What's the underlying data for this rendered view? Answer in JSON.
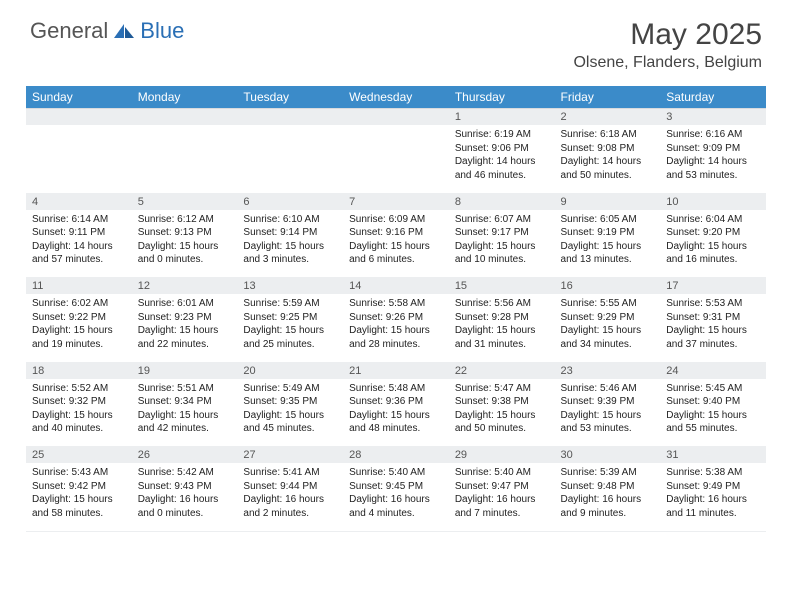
{
  "logo": {
    "text1": "General",
    "text2": "Blue"
  },
  "title": "May 2025",
  "location": "Olsene, Flanders, Belgium",
  "colors": {
    "header_bg": "#3b8bc9",
    "header_text": "#ffffff",
    "daynum_bg": "#eceef0",
    "text": "#222222",
    "logo_gray": "#555555",
    "logo_blue": "#2a6fb5"
  },
  "weekdays": [
    "Sunday",
    "Monday",
    "Tuesday",
    "Wednesday",
    "Thursday",
    "Friday",
    "Saturday"
  ],
  "weeks": [
    [
      null,
      null,
      null,
      null,
      {
        "n": "1",
        "sr": "6:19 AM",
        "ss": "9:06 PM",
        "dl": "14 hours and 46 minutes."
      },
      {
        "n": "2",
        "sr": "6:18 AM",
        "ss": "9:08 PM",
        "dl": "14 hours and 50 minutes."
      },
      {
        "n": "3",
        "sr": "6:16 AM",
        "ss": "9:09 PM",
        "dl": "14 hours and 53 minutes."
      }
    ],
    [
      {
        "n": "4",
        "sr": "6:14 AM",
        "ss": "9:11 PM",
        "dl": "14 hours and 57 minutes."
      },
      {
        "n": "5",
        "sr": "6:12 AM",
        "ss": "9:13 PM",
        "dl": "15 hours and 0 minutes."
      },
      {
        "n": "6",
        "sr": "6:10 AM",
        "ss": "9:14 PM",
        "dl": "15 hours and 3 minutes."
      },
      {
        "n": "7",
        "sr": "6:09 AM",
        "ss": "9:16 PM",
        "dl": "15 hours and 6 minutes."
      },
      {
        "n": "8",
        "sr": "6:07 AM",
        "ss": "9:17 PM",
        "dl": "15 hours and 10 minutes."
      },
      {
        "n": "9",
        "sr": "6:05 AM",
        "ss": "9:19 PM",
        "dl": "15 hours and 13 minutes."
      },
      {
        "n": "10",
        "sr": "6:04 AM",
        "ss": "9:20 PM",
        "dl": "15 hours and 16 minutes."
      }
    ],
    [
      {
        "n": "11",
        "sr": "6:02 AM",
        "ss": "9:22 PM",
        "dl": "15 hours and 19 minutes."
      },
      {
        "n": "12",
        "sr": "6:01 AM",
        "ss": "9:23 PM",
        "dl": "15 hours and 22 minutes."
      },
      {
        "n": "13",
        "sr": "5:59 AM",
        "ss": "9:25 PM",
        "dl": "15 hours and 25 minutes."
      },
      {
        "n": "14",
        "sr": "5:58 AM",
        "ss": "9:26 PM",
        "dl": "15 hours and 28 minutes."
      },
      {
        "n": "15",
        "sr": "5:56 AM",
        "ss": "9:28 PM",
        "dl": "15 hours and 31 minutes."
      },
      {
        "n": "16",
        "sr": "5:55 AM",
        "ss": "9:29 PM",
        "dl": "15 hours and 34 minutes."
      },
      {
        "n": "17",
        "sr": "5:53 AM",
        "ss": "9:31 PM",
        "dl": "15 hours and 37 minutes."
      }
    ],
    [
      {
        "n": "18",
        "sr": "5:52 AM",
        "ss": "9:32 PM",
        "dl": "15 hours and 40 minutes."
      },
      {
        "n": "19",
        "sr": "5:51 AM",
        "ss": "9:34 PM",
        "dl": "15 hours and 42 minutes."
      },
      {
        "n": "20",
        "sr": "5:49 AM",
        "ss": "9:35 PM",
        "dl": "15 hours and 45 minutes."
      },
      {
        "n": "21",
        "sr": "5:48 AM",
        "ss": "9:36 PM",
        "dl": "15 hours and 48 minutes."
      },
      {
        "n": "22",
        "sr": "5:47 AM",
        "ss": "9:38 PM",
        "dl": "15 hours and 50 minutes."
      },
      {
        "n": "23",
        "sr": "5:46 AM",
        "ss": "9:39 PM",
        "dl": "15 hours and 53 minutes."
      },
      {
        "n": "24",
        "sr": "5:45 AM",
        "ss": "9:40 PM",
        "dl": "15 hours and 55 minutes."
      }
    ],
    [
      {
        "n": "25",
        "sr": "5:43 AM",
        "ss": "9:42 PM",
        "dl": "15 hours and 58 minutes."
      },
      {
        "n": "26",
        "sr": "5:42 AM",
        "ss": "9:43 PM",
        "dl": "16 hours and 0 minutes."
      },
      {
        "n": "27",
        "sr": "5:41 AM",
        "ss": "9:44 PM",
        "dl": "16 hours and 2 minutes."
      },
      {
        "n": "28",
        "sr": "5:40 AM",
        "ss": "9:45 PM",
        "dl": "16 hours and 4 minutes."
      },
      {
        "n": "29",
        "sr": "5:40 AM",
        "ss": "9:47 PM",
        "dl": "16 hours and 7 minutes."
      },
      {
        "n": "30",
        "sr": "5:39 AM",
        "ss": "9:48 PM",
        "dl": "16 hours and 9 minutes."
      },
      {
        "n": "31",
        "sr": "5:38 AM",
        "ss": "9:49 PM",
        "dl": "16 hours and 11 minutes."
      }
    ]
  ]
}
